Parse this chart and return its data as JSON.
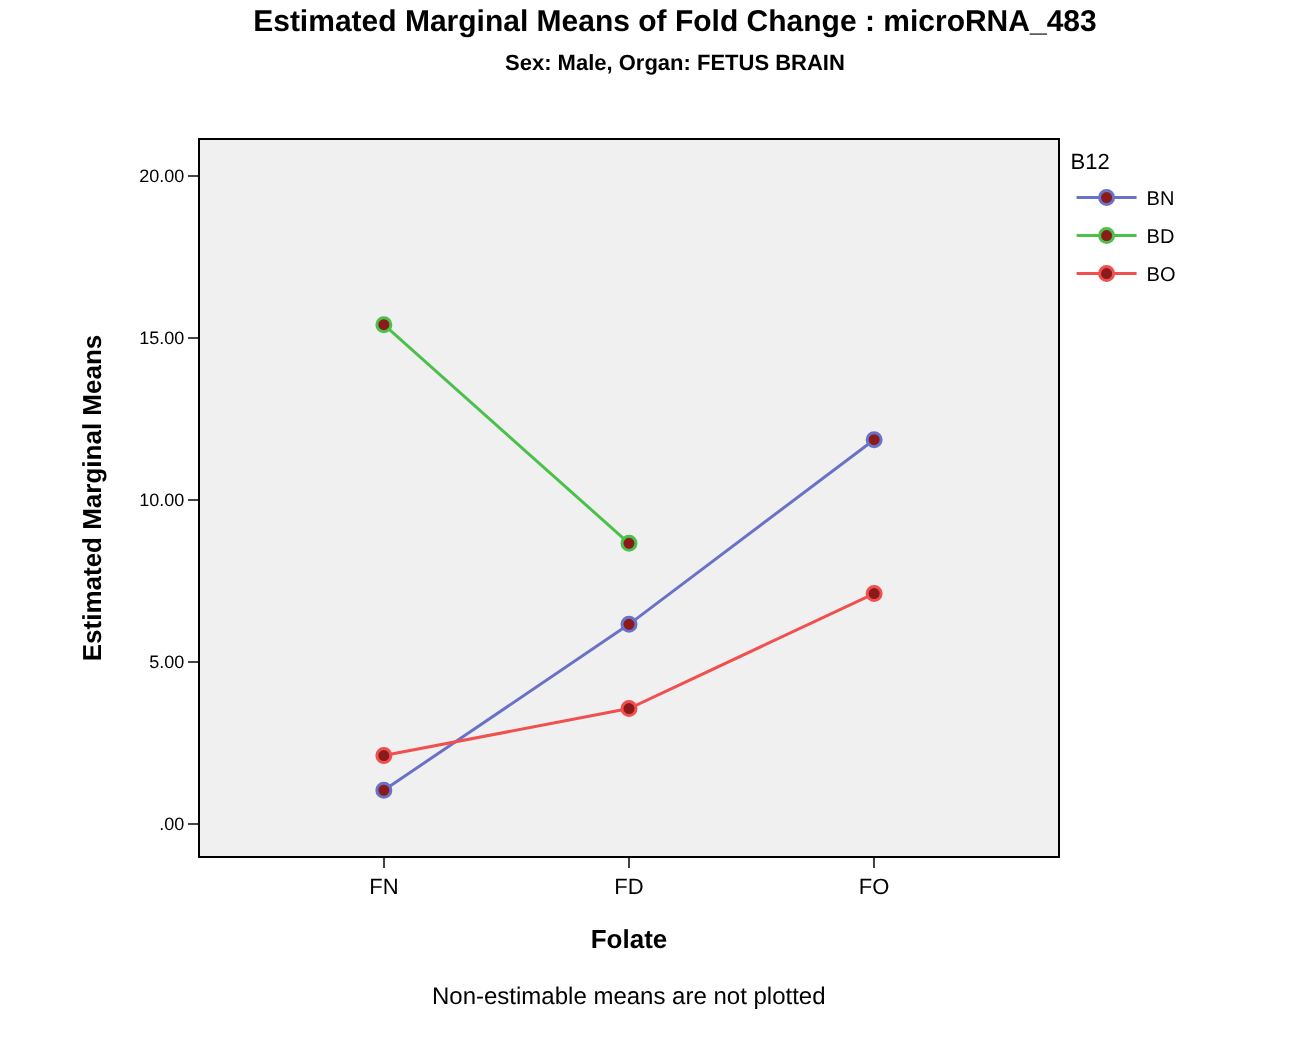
{
  "chart_data": {
    "type": "line",
    "title": "Estimated Marginal Means of Fold Change : microRNA_483",
    "subtitle": "Sex: Male, Organ: FETUS BRAIN",
    "xlabel": "Folate",
    "ylabel": "Estimated Marginal Means",
    "legend_title": "B12",
    "categories": [
      "FN",
      "FD",
      "FO"
    ],
    "series": [
      {
        "name": "BN",
        "color": "#6a72c8",
        "values": [
          1.03,
          6.15,
          11.85
        ]
      },
      {
        "name": "BD",
        "color": "#4cc04c",
        "values": [
          15.4,
          8.65,
          null
        ]
      },
      {
        "name": "BO",
        "color": "#f05050",
        "values": [
          2.1,
          3.55,
          7.1
        ]
      }
    ],
    "ylim": [
      -1.0,
      21.1
    ],
    "yticks": [
      {
        "value": 0,
        "label": ".00"
      },
      {
        "value": 5,
        "label": "5.00"
      },
      {
        "value": 10,
        "label": "10.00"
      },
      {
        "value": 15,
        "label": "15.00"
      },
      {
        "value": 20,
        "label": "20.00"
      }
    ],
    "grid": false,
    "legend": "top right",
    "marker": "circle",
    "annotations": [
      "Non-estimable means are not plotted"
    ]
  }
}
